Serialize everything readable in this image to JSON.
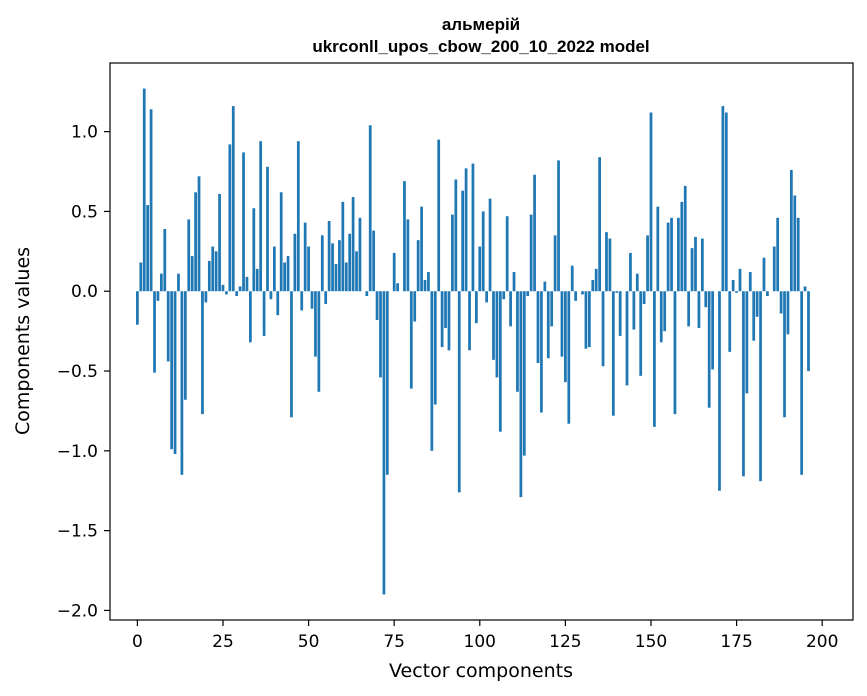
{
  "chart_data": {
    "type": "bar",
    "title": "альмерій",
    "subtitle": "ukrconll_upos_cbow_200_10_2022 model",
    "xlabel": "Vector components",
    "ylabel": "Components values",
    "xlim": [
      -8,
      209
    ],
    "ylim": [
      -2.06,
      1.43
    ],
    "xticks": [
      0,
      25,
      50,
      75,
      100,
      125,
      150,
      175,
      200
    ],
    "yticks": [
      -2.0,
      -1.5,
      -1.0,
      -0.5,
      0.0,
      0.5,
      1.0
    ],
    "ytick_labels": [
      "−2.0",
      "−1.5",
      "−1.0",
      "−0.5",
      "0.0",
      "0.5",
      "1.0"
    ],
    "xtick_labels": [
      "0",
      "25",
      "50",
      "75",
      "100",
      "125",
      "150",
      "175",
      "200"
    ],
    "bar_color": "#1f77b4",
    "grid": false,
    "values": [
      -0.21,
      0.18,
      1.27,
      0.54,
      1.14,
      -0.51,
      -0.06,
      0.11,
      0.39,
      -0.44,
      -0.99,
      -1.02,
      0.11,
      -1.15,
      -0.68,
      0.45,
      0.22,
      0.62,
      0.72,
      -0.77,
      -0.07,
      0.19,
      0.28,
      0.25,
      0.61,
      0.04,
      -0.02,
      0.92,
      1.16,
      -0.03,
      0.03,
      0.87,
      0.09,
      -0.32,
      0.52,
      0.14,
      0.94,
      -0.28,
      0.78,
      -0.05,
      0.28,
      -0.15,
      0.62,
      0.18,
      0.22,
      -0.79,
      0.36,
      0.94,
      -0.12,
      0.43,
      0.28,
      -0.11,
      -0.41,
      -0.63,
      0.35,
      -0.08,
      0.44,
      0.3,
      0.17,
      0.32,
      0.56,
      0.18,
      0.36,
      0.59,
      0.25,
      0.46,
      0.0,
      -0.03,
      1.04,
      0.38,
      -0.18,
      -0.54,
      -1.9,
      -1.15,
      0.0,
      0.24,
      0.05,
      0.0,
      0.69,
      0.45,
      -0.61,
      -0.19,
      0.32,
      0.53,
      0.07,
      0.12,
      -1.0,
      -0.71,
      0.95,
      -0.35,
      -0.23,
      -0.37,
      0.48,
      0.7,
      -1.26,
      0.63,
      0.77,
      -0.37,
      0.8,
      -0.2,
      0.28,
      0.5,
      -0.07,
      0.58,
      -0.43,
      -0.54,
      -0.88,
      -0.05,
      0.47,
      -0.22,
      0.12,
      -0.63,
      -1.29,
      -1.03,
      -0.03,
      0.48,
      0.73,
      -0.45,
      -0.76,
      0.06,
      -0.42,
      -0.22,
      0.35,
      0.82,
      -0.41,
      -0.57,
      -0.83,
      0.16,
      -0.06,
      0.0,
      -0.02,
      -0.36,
      -0.35,
      0.07,
      0.14,
      0.84,
      -0.47,
      0.37,
      0.33,
      -0.78,
      -0.01,
      -0.28,
      0.0,
      -0.59,
      0.24,
      -0.24,
      0.11,
      -0.53,
      -0.08,
      0.35,
      1.12,
      -0.85,
      0.53,
      -0.32,
      -0.25,
      0.43,
      0.46,
      -0.77,
      0.46,
      0.56,
      0.66,
      -0.22,
      0.27,
      0.34,
      -0.23,
      0.33,
      -0.1,
      -0.73,
      -0.49,
      0.0,
      -1.25,
      1.16,
      1.12,
      -0.38,
      0.07,
      -0.01,
      0.14,
      -1.16,
      -0.64,
      0.12,
      -0.31,
      -0.16,
      -1.19,
      0.21,
      -0.03,
      0.0,
      0.28,
      0.46,
      -0.14,
      -0.79,
      -0.27,
      0.76,
      0.6,
      0.46,
      -1.15,
      0.03,
      -0.5
    ]
  }
}
